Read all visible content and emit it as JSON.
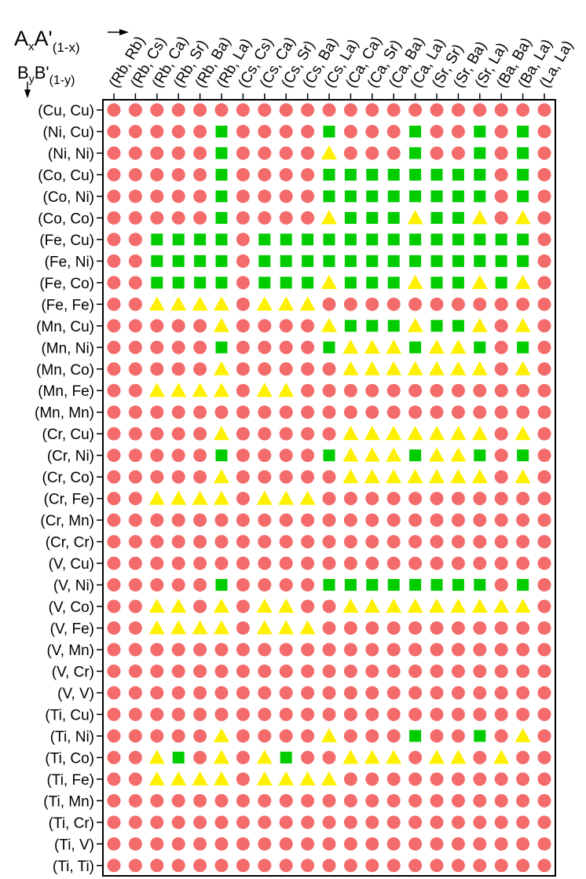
{
  "chart_data": {
    "type": "scatter",
    "x_axis_label": {
      "main": "A",
      "sub1": "x",
      "mid": "A'",
      "sub2": "(1-x)"
    },
    "y_axis_label": {
      "main": "B",
      "sub1": "y",
      "mid": "B'",
      "sub2": "(1-y)"
    },
    "columns": [
      "(Rb, Rb)",
      "(Rb, Cs)",
      "(Rb, Ca)",
      "(Rb, Sr)",
      "(Rb, Ba)",
      "(Rb, La)",
      "(Cs, Cs)",
      "(Cs, Ca)",
      "(Cs, Sr)",
      "(Cs, Ba)",
      "(Cs, La)",
      "(Ca, Ca)",
      "(Ca, Sr)",
      "(Ca, Ba)",
      "(Ca, La)",
      "(Sr, Sr)",
      "(Sr, Ba)",
      "(Sr, La)",
      "(Ba, Ba)",
      "(Ba, La)",
      "(La, La)"
    ],
    "rows": [
      "(Cu, Cu)",
      "(Ni, Cu)",
      "(Ni, Ni)",
      "(Co, Cu)",
      "(Co, Ni)",
      "(Co, Co)",
      "(Fe, Cu)",
      "(Fe, Ni)",
      "(Fe, Co)",
      "(Fe, Fe)",
      "(Mn, Cu)",
      "(Mn, Ni)",
      "(Mn, Co)",
      "(Mn, Fe)",
      "(Mn, Mn)",
      "(Cr, Cu)",
      "(Cr, Ni)",
      "(Cr, Co)",
      "(Cr, Fe)",
      "(Cr, Mn)",
      "(Cr, Cr)",
      "(V, Cu)",
      "(V, Ni)",
      "(V, Co)",
      "(V, Fe)",
      "(V, Mn)",
      "(V, Cr)",
      "(V, V)",
      "(Ti, Cu)",
      "(Ti, Ni)",
      "(Ti, Co)",
      "(Ti, Fe)",
      "(Ti, Mn)",
      "(Ti, Cr)",
      "(Ti, V)",
      "(Ti, Ti)"
    ],
    "markers": {
      "C": {
        "shape": "circle",
        "color": "#F46B6B"
      },
      "S": {
        "shape": "square",
        "color": "#00CC00"
      },
      "T": {
        "shape": "triangle",
        "color": "#FFF000"
      }
    },
    "grid": [
      "CCCCCCCCCCCCCCCCCCCCC",
      "CCCCCSCCCCSCCCSCCSCSC",
      "CCCCCSCCCCTCCCSCCSCSC",
      "CCCCCSCCCCSSSSSSSSCSC",
      "CCCCCSCCCCSSSSSSSSCSC",
      "CCCCCSCCCCTSSSTSSTCTC",
      "CCSSSSCSSSSSSSSSSSSSC",
      "CCSSSSCSSSSSSSSSSSSSC",
      "CCSSSSCSSSTSSSTSSTSTC",
      "CCTTTTCTTTCCCCCCCCCCC",
      "CCCCCTCCCCTSSSTSSTCTC",
      "CCCCCSCCCCSTTTSTTSCSC",
      "CCCCCTCCCCCTTTTTTTCTC",
      "CCTTTTCTTCCCCCCCCCCCC",
      "CCCCCCCCCCCCCCCCCCCCC",
      "CCCCCTCCCCCTTTTTTTCTC",
      "CCCCCSCCCCSTTTSTTSCSC",
      "CCCCCTCCCCCTTTTTTTCTC",
      "CCTTTTCTTTCCCCCCCCCCC",
      "CCCCCCCCCCCCCCCCCCCCC",
      "CCCCCCCCCCCCCCCCCCCCC",
      "CCCCCCCCCCCCCCCCCCCCC",
      "CCCCCSCCCCSSSSSSSSCSC",
      "CCTTCTCTTCCTTTTTTTTTC",
      "CCTTTTCTTTCCCCCCCCCCC",
      "CCCCCCCCCCCCCCCCCCCCC",
      "CCCCCCCCCCCCCCCCCCCCC",
      "CCCCCCCCCCCCCCCCCCCCC",
      "CCCCCCCCCCCCCCCCCCCCC",
      "CCCCCTCCCCTCCCSCCSCTC",
      "CCTSCTCTSCCTTTCTTCTCC",
      "CCTTTTCTTTTCCCCCCCCCC",
      "CCCCCCCCCCCCCCCCCCCCC",
      "CCCCCCCCCCCCCCCCCCCCC",
      "CCCCCCCCCCCCCCCCCCCCC",
      "CCCCCCCCCCCCCCCCCCCCC"
    ],
    "grid_lines": false,
    "legend": "none"
  }
}
